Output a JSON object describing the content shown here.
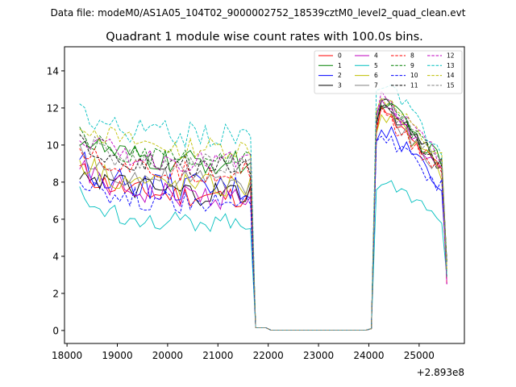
{
  "file_label": "Data file: modeM0/AS1A05_104T02_9000002752_18539cztM0_level2_quad_clean.evt",
  "chart_data": {
    "type": "line",
    "title": "Quadrant 1 module wise count rates with 100.0s bins.",
    "xlabel": "",
    "ylabel": "",
    "x_offset_label": "+2.893e8",
    "xlim": [
      17950,
      25900
    ],
    "ylim": [
      -0.7,
      15.3
    ],
    "x_ticks": [
      18000,
      19000,
      20000,
      21000,
      22000,
      23000,
      24000,
      25000
    ],
    "y_ticks": [
      0,
      2,
      4,
      6,
      8,
      10,
      12,
      14
    ],
    "x_start": 18250,
    "x_step": 100,
    "legend_position": "top-right",
    "series": [
      {
        "name": "0",
        "color": "#ff0000",
        "dash": false,
        "base": 7.2,
        "high": 12.0,
        "noise": 0.3
      },
      {
        "name": "1",
        "color": "#008000",
        "dash": false,
        "base": 9.0,
        "high": 12.6,
        "noise": 0.35
      },
      {
        "name": "2",
        "color": "#0000ff",
        "dash": false,
        "base": 7.6,
        "high": 11.2,
        "noise": 0.4
      },
      {
        "name": "3",
        "color": "#000000",
        "dash": false,
        "base": 7.3,
        "high": 12.5,
        "noise": 0.35
      },
      {
        "name": "4",
        "color": "#bf00bf",
        "dash": false,
        "base": 7.2,
        "high": 12.3,
        "noise": 0.35
      },
      {
        "name": "5",
        "color": "#00bfbf",
        "dash": false,
        "base": 5.8,
        "high": 8.3,
        "noise": 0.25
      },
      {
        "name": "6",
        "color": "#bfbf00",
        "dash": false,
        "base": 7.8,
        "high": 12.0,
        "noise": 0.35
      },
      {
        "name": "7",
        "color": "#808080",
        "dash": false,
        "base": 8.0,
        "high": 12.1,
        "noise": 0.35
      },
      {
        "name": "8",
        "color": "#ff0000",
        "dash": true,
        "base": 8.5,
        "high": 11.9,
        "noise": 0.3
      },
      {
        "name": "9",
        "color": "#008000",
        "dash": true,
        "base": 9.1,
        "high": 12.7,
        "noise": 0.3
      },
      {
        "name": "10",
        "color": "#0000ff",
        "dash": true,
        "base": 6.8,
        "high": 10.8,
        "noise": 0.3
      },
      {
        "name": "11",
        "color": "#000000",
        "dash": true,
        "base": 8.8,
        "high": 12.2,
        "noise": 0.3
      },
      {
        "name": "12",
        "color": "#bf00bf",
        "dash": true,
        "base": 9.1,
        "high": 12.8,
        "noise": 0.3
      },
      {
        "name": "13",
        "color": "#00bfbf",
        "dash": true,
        "base": 10.5,
        "high": 13.7,
        "noise": 0.35
      },
      {
        "name": "14",
        "color": "#bfbf00",
        "dash": true,
        "base": 9.8,
        "high": 12.9,
        "noise": 0.3
      },
      {
        "name": "15",
        "color": "#808080",
        "dash": true,
        "base": 8.9,
        "high": 12.6,
        "noise": 0.3
      }
    ]
  }
}
